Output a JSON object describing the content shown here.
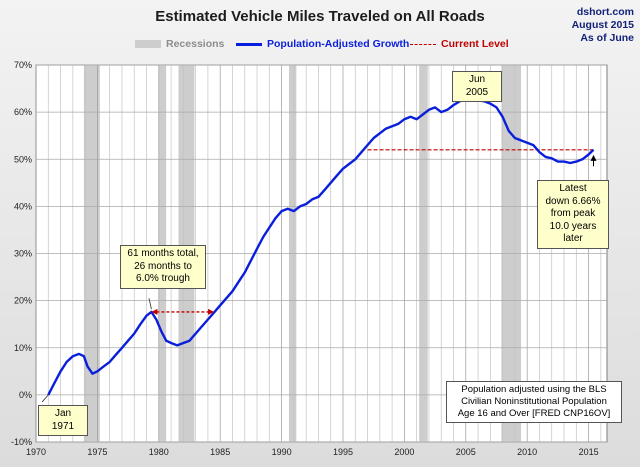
{
  "header": {
    "title": "Estimated Vehicle Miles Traveled on All Roads",
    "source": [
      "dshort.com",
      "August 2015",
      "As of June"
    ]
  },
  "legend": {
    "recessions": "Recessions",
    "growth": "Population-Adjusted Growth",
    "current": "Current Level"
  },
  "colors": {
    "series": "#0a1fdb",
    "current_level": "#c00000",
    "recession": "#cdcdcd",
    "callout_bg": "#ffffcc"
  },
  "annotations": {
    "jan1971": "Jan 1971",
    "jun2005": "Jun 2005",
    "sixtyone": [
      "61 months total,",
      "26 months to",
      "6.0% trough"
    ],
    "latest": [
      "Latest",
      "down 6.66%",
      "from peak",
      "10.0 years later"
    ],
    "note": [
      "Population adjusted using the BLS",
      "Civilian Noninstitutional Population",
      "Age 16 and Over  [FRED CNP16OV]"
    ]
  },
  "chart_data": {
    "type": "line",
    "title": "Estimated Vehicle Miles Traveled on All Roads",
    "xlim": [
      1970,
      2016.5
    ],
    "ylim": [
      -10,
      70
    ],
    "x_ticks": [
      1970,
      1975,
      1980,
      1985,
      1990,
      1995,
      2000,
      2005,
      2010,
      2015
    ],
    "x_tick_labels": [
      "1970",
      "1975",
      "1980",
      "1985",
      "1990",
      "1995",
      "2000",
      "2005",
      "2010",
      "2015"
    ],
    "y_ticks": [
      -10,
      0,
      10,
      20,
      30,
      40,
      50,
      60,
      70
    ],
    "y_tick_labels": [
      "-10%",
      "0%",
      "10%",
      "20%",
      "30%",
      "40%",
      "50%",
      "60%",
      "70%"
    ],
    "grid": true,
    "legend_position": "top",
    "recessions": [
      [
        1973.9,
        1975.2
      ],
      [
        1980.0,
        1980.6
      ],
      [
        1981.6,
        1982.9
      ],
      [
        1990.6,
        1991.2
      ],
      [
        2001.2,
        2001.9
      ],
      [
        2007.9,
        2009.5
      ]
    ],
    "series": [
      {
        "name": "Population-Adjusted Growth",
        "x": [
          1971.0,
          1971.5,
          1972.0,
          1972.5,
          1973.0,
          1973.5,
          1973.9,
          1974.2,
          1974.6,
          1975.0,
          1975.5,
          1976.0,
          1976.5,
          1977.0,
          1977.5,
          1978.0,
          1978.5,
          1979.0,
          1979.4,
          1979.8,
          1980.2,
          1980.6,
          1981.0,
          1981.5,
          1982.0,
          1982.5,
          1983.0,
          1983.5,
          1984.0,
          1984.5,
          1985.0,
          1985.5,
          1986.0,
          1986.5,
          1987.0,
          1987.5,
          1988.0,
          1988.5,
          1989.0,
          1989.5,
          1990.0,
          1990.5,
          1991.0,
          1991.5,
          1992.0,
          1992.5,
          1993.0,
          1993.5,
          1994.0,
          1994.5,
          1995.0,
          1995.5,
          1996.0,
          1996.5,
          1997.0,
          1997.5,
          1998.0,
          1998.5,
          1999.0,
          1999.5,
          2000.0,
          2000.5,
          2001.0,
          2001.5,
          2002.0,
          2002.5,
          2003.0,
          2003.5,
          2004.0,
          2004.5,
          2005.0,
          2005.5,
          2006.0,
          2006.5,
          2007.0,
          2007.5,
          2008.0,
          2008.5,
          2009.0,
          2009.5,
          2010.0,
          2010.5,
          2011.0,
          2011.5,
          2012.0,
          2012.5,
          2013.0,
          2013.5,
          2014.0,
          2014.5,
          2015.0,
          2015.4
        ],
        "values": [
          0.0,
          2.5,
          5.0,
          7.0,
          8.2,
          8.7,
          8.2,
          6.0,
          4.5,
          5.0,
          6.0,
          7.0,
          8.5,
          10.0,
          11.5,
          13.0,
          15.0,
          16.8,
          17.6,
          16.0,
          13.5,
          11.5,
          11.0,
          10.5,
          11.0,
          11.5,
          13.0,
          14.5,
          16.0,
          17.5,
          19.0,
          20.5,
          22.0,
          24.0,
          26.0,
          28.5,
          31.0,
          33.5,
          35.5,
          37.5,
          39.0,
          39.5,
          39.0,
          40.0,
          40.5,
          41.5,
          42.0,
          43.5,
          45.0,
          46.5,
          48.0,
          49.0,
          50.0,
          51.5,
          53.0,
          54.5,
          55.5,
          56.5,
          57.0,
          57.5,
          58.5,
          59.0,
          58.5,
          59.5,
          60.5,
          61.0,
          60.0,
          60.5,
          61.5,
          62.3,
          62.7,
          62.8,
          62.5,
          62.3,
          61.8,
          61.0,
          59.0,
          56.0,
          54.5,
          54.0,
          53.5,
          53.0,
          51.5,
          50.5,
          50.2,
          49.5,
          49.5,
          49.2,
          49.5,
          50.0,
          51.0,
          52.0
        ]
      }
    ],
    "current_level": 52.0,
    "current_level_start": 1997.0,
    "arrow_61": {
      "from": 1979.4,
      "to": 1984.5,
      "y": 17.6
    }
  }
}
